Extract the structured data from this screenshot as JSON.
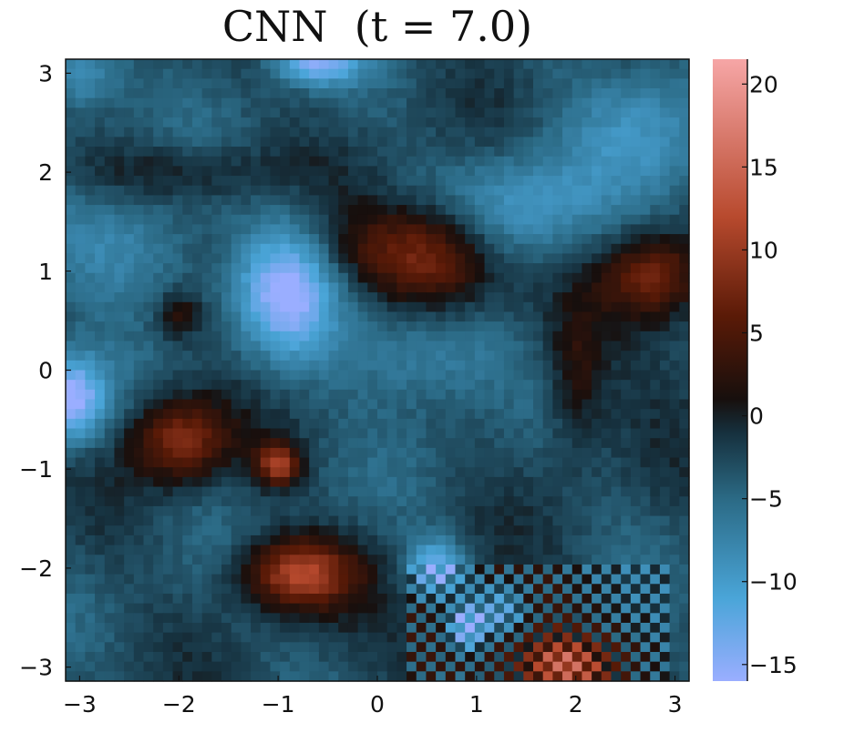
{
  "chart_data": {
    "type": "heatmap",
    "title": "CNN  (t = 7.0)",
    "xlabel": "",
    "ylabel": "",
    "xlim": [
      -3.14159,
      3.14159
    ],
    "ylim": [
      -3.14159,
      3.14159
    ],
    "x_ticks": [
      -3,
      -2,
      -1,
      0,
      1,
      2,
      3
    ],
    "y_ticks": [
      -3,
      -2,
      -1,
      0,
      1,
      2,
      3
    ],
    "x_tick_labels": [
      "−3",
      "−2",
      "−1",
      "0",
      "1",
      "2",
      "3"
    ],
    "y_tick_labels": [
      "−3",
      "−2",
      "−1",
      "0",
      "1",
      "2",
      "3"
    ],
    "grid": false,
    "grid_size": 64,
    "background_value": -3,
    "colorbar": {
      "range": [
        -16,
        21.5
      ],
      "ticks": [
        -15,
        -10,
        -5,
        0,
        5,
        10,
        15,
        20
      ],
      "tick_labels": [
        "−15",
        "−10",
        "−5",
        "0",
        "5",
        "10",
        "15",
        "20"
      ],
      "colors": [
        {
          "value": -16,
          "color": "#9aaeff"
        },
        {
          "value": -11,
          "color": "#4aa5d8"
        },
        {
          "value": -5,
          "color": "#2b6a85"
        },
        {
          "value": -1,
          "color": "#16303d"
        },
        {
          "value": 1,
          "color": "#170f0d"
        },
        {
          "value": 6,
          "color": "#5a1a07"
        },
        {
          "value": 12,
          "color": "#b84a2e"
        },
        {
          "value": 21.5,
          "color": "#f6a6a6"
        }
      ]
    },
    "features": [
      {
        "x": 2.8,
        "y": 0.2,
        "value": 1.5,
        "sx": 2.5,
        "sy": 0.5
      },
      {
        "x": -2.0,
        "y": 2.0,
        "value": 4,
        "sx": 0.8,
        "sy": 0.2
      },
      {
        "x": 0.6,
        "y": 1.1,
        "value": 9,
        "sx": 0.45,
        "sy": 0.4
      },
      {
        "x": 0.0,
        "y": 1.25,
        "value": 5,
        "sx": 0.8,
        "sy": 0.3
      },
      {
        "x": 2.8,
        "y": 0.95,
        "value": 10,
        "sx": 0.35,
        "sy": 0.3
      },
      {
        "x": -2.0,
        "y": -0.7,
        "value": 11,
        "sx": 0.35,
        "sy": 0.3
      },
      {
        "x": -1.0,
        "y": -0.95,
        "value": 13,
        "sx": 0.15,
        "sy": 0.15
      },
      {
        "x": -0.8,
        "y": -2.05,
        "value": 14,
        "sx": 0.4,
        "sy": 0.25
      },
      {
        "x": -2.0,
        "y": 0.55,
        "value": 6,
        "sx": 0.15,
        "sy": 0.15
      },
      {
        "x": 1.9,
        "y": -3.0,
        "value": 13,
        "sx": 0.3,
        "sy": 0.2
      },
      {
        "x": 1.2,
        "y": -2.7,
        "value": 6,
        "sx": 0.6,
        "sy": 0.4
      },
      {
        "x": 2.0,
        "y": -0.1,
        "value": 5,
        "sx": 0.2,
        "sy": 0.5
      },
      {
        "x": -0.9,
        "y": 0.85,
        "value": -13,
        "sx": 0.35,
        "sy": 0.5
      },
      {
        "x": -0.6,
        "y": 3.1,
        "value": -11,
        "sx": 0.3,
        "sy": 0.15
      },
      {
        "x": -3.1,
        "y": -0.3,
        "value": -14,
        "sx": 0.25,
        "sy": 0.3
      },
      {
        "x": 0.5,
        "y": 0.2,
        "value": -7,
        "sx": 0.6,
        "sy": 0.4
      },
      {
        "x": 1.5,
        "y": 1.6,
        "value": -7,
        "sx": 0.6,
        "sy": 0.4
      },
      {
        "x": 2.8,
        "y": 2.5,
        "value": -5,
        "sx": 0.6,
        "sy": 0.5
      },
      {
        "x": 0.6,
        "y": -2.0,
        "value": -11,
        "sx": 0.2,
        "sy": 0.2
      },
      {
        "x": -2.5,
        "y": 1.2,
        "value": -6,
        "sx": 0.5,
        "sy": 0.4
      },
      {
        "x": -3.0,
        "y": 3.0,
        "value": -7,
        "sx": 0.3,
        "sy": 0.3
      },
      {
        "x": 0.9,
        "y": -2.6,
        "value": -15,
        "sx": 0.12,
        "sy": 0.15
      },
      {
        "x": 1.25,
        "y": -2.45,
        "value": -10,
        "sx": 0.2,
        "sy": 0.2
      }
    ]
  }
}
